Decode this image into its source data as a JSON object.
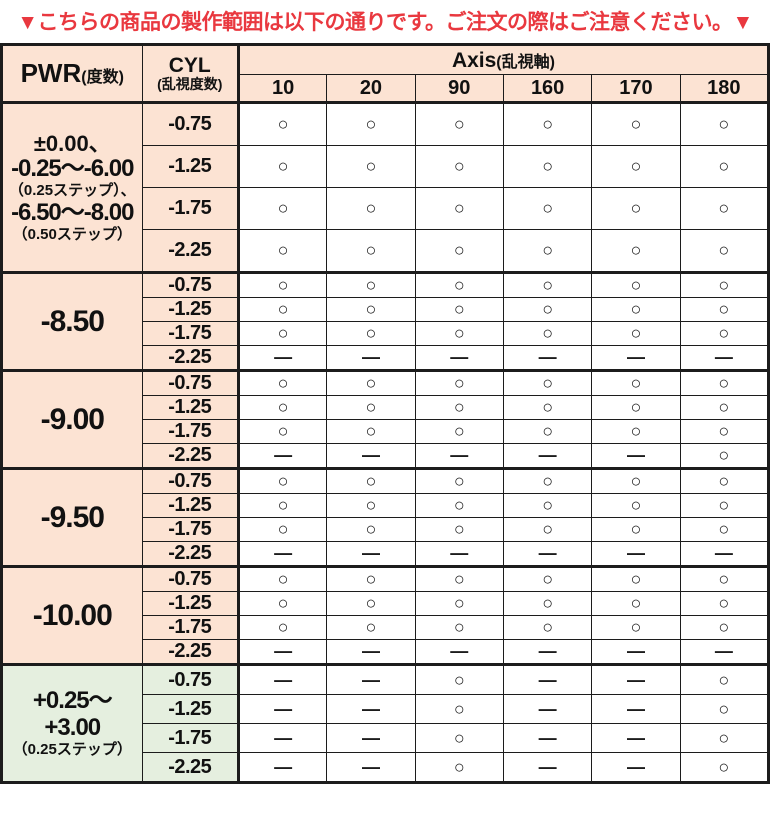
{
  "title": {
    "text": "▼こちらの商品の製作範囲は以下の通りです。ご注文の際はご注意ください。▼",
    "color": "#e9383f"
  },
  "symbols": {
    "available": "○",
    "unavailable": "—"
  },
  "colors": {
    "header_bg": "#fce3d3",
    "minus_group_bg": "#fce3d3",
    "plus_group_bg": "#e5efdf",
    "border": "#1c1c1c",
    "title_red": "#e9383f"
  },
  "table": {
    "headers": {
      "pwr": {
        "main": "PWR",
        "sub": "(度数)"
      },
      "cyl": {
        "main": "CYL",
        "sub": "(乱視度数)"
      },
      "axis": {
        "main": "Axis",
        "sub": "(乱視軸)"
      },
      "axis_values": [
        "10",
        "20",
        "90",
        "160",
        "170",
        "180"
      ]
    },
    "groups": [
      {
        "bg": "peach",
        "row_size": "rh-lg",
        "pwr_lines": [
          {
            "text": "±0.00、",
            "size": "md"
          },
          {
            "text": "-0.25～-6.00",
            "size": "lg"
          },
          {
            "text": "（0.25ステップ）、",
            "size": "sm"
          },
          {
            "text": "-6.50～-8.00",
            "size": "lg"
          },
          {
            "text": "（0.50ステップ）",
            "size": "sm"
          }
        ],
        "rows": [
          {
            "cyl": "-0.75",
            "cells": [
              "○",
              "○",
              "○",
              "○",
              "○",
              "○"
            ]
          },
          {
            "cyl": "-1.25",
            "cells": [
              "○",
              "○",
              "○",
              "○",
              "○",
              "○"
            ]
          },
          {
            "cyl": "-1.75",
            "cells": [
              "○",
              "○",
              "○",
              "○",
              "○",
              "○"
            ]
          },
          {
            "cyl": "-2.25",
            "cells": [
              "○",
              "○",
              "○",
              "○",
              "○",
              "○"
            ]
          }
        ]
      },
      {
        "bg": "peach",
        "row_size": "rh-sm",
        "pwr_lines": [
          {
            "text": "-8.50",
            "size": "xl"
          }
        ],
        "rows": [
          {
            "cyl": "-0.75",
            "cells": [
              "○",
              "○",
              "○",
              "○",
              "○",
              "○"
            ]
          },
          {
            "cyl": "-1.25",
            "cells": [
              "○",
              "○",
              "○",
              "○",
              "○",
              "○"
            ]
          },
          {
            "cyl": "-1.75",
            "cells": [
              "○",
              "○",
              "○",
              "○",
              "○",
              "○"
            ]
          },
          {
            "cyl": "-2.25",
            "cells": [
              "—",
              "—",
              "—",
              "—",
              "—",
              "—"
            ]
          }
        ]
      },
      {
        "bg": "peach",
        "row_size": "rh-sm",
        "pwr_lines": [
          {
            "text": "-9.00",
            "size": "xl"
          }
        ],
        "rows": [
          {
            "cyl": "-0.75",
            "cells": [
              "○",
              "○",
              "○",
              "○",
              "○",
              "○"
            ]
          },
          {
            "cyl": "-1.25",
            "cells": [
              "○",
              "○",
              "○",
              "○",
              "○",
              "○"
            ]
          },
          {
            "cyl": "-1.75",
            "cells": [
              "○",
              "○",
              "○",
              "○",
              "○",
              "○"
            ]
          },
          {
            "cyl": "-2.25",
            "cells": [
              "—",
              "—",
              "—",
              "—",
              "—",
              "○"
            ]
          }
        ]
      },
      {
        "bg": "peach",
        "row_size": "rh-sm",
        "pwr_lines": [
          {
            "text": "-9.50",
            "size": "xl"
          }
        ],
        "rows": [
          {
            "cyl": "-0.75",
            "cells": [
              "○",
              "○",
              "○",
              "○",
              "○",
              "○"
            ]
          },
          {
            "cyl": "-1.25",
            "cells": [
              "○",
              "○",
              "○",
              "○",
              "○",
              "○"
            ]
          },
          {
            "cyl": "-1.75",
            "cells": [
              "○",
              "○",
              "○",
              "○",
              "○",
              "○"
            ]
          },
          {
            "cyl": "-2.25",
            "cells": [
              "—",
              "—",
              "—",
              "—",
              "—",
              "—"
            ]
          }
        ]
      },
      {
        "bg": "peach",
        "row_size": "rh-sm",
        "pwr_lines": [
          {
            "text": "-10.00",
            "size": "xl"
          }
        ],
        "rows": [
          {
            "cyl": "-0.75",
            "cells": [
              "○",
              "○",
              "○",
              "○",
              "○",
              "○"
            ]
          },
          {
            "cyl": "-1.25",
            "cells": [
              "○",
              "○",
              "○",
              "○",
              "○",
              "○"
            ]
          },
          {
            "cyl": "-1.75",
            "cells": [
              "○",
              "○",
              "○",
              "○",
              "○",
              "○"
            ]
          },
          {
            "cyl": "-2.25",
            "cells": [
              "—",
              "—",
              "—",
              "—",
              "—",
              "—"
            ]
          }
        ]
      },
      {
        "bg": "green",
        "row_size": "rh-md",
        "pwr_lines": [
          {
            "text": "+0.25～",
            "size": "lg"
          },
          {
            "text": "+3.00",
            "size": "lg"
          },
          {
            "text": "（0.25ステップ）",
            "size": "sm"
          }
        ],
        "rows": [
          {
            "cyl": "-0.75",
            "cells": [
              "—",
              "—",
              "○",
              "—",
              "—",
              "○"
            ]
          },
          {
            "cyl": "-1.25",
            "cells": [
              "—",
              "—",
              "○",
              "—",
              "—",
              "○"
            ]
          },
          {
            "cyl": "-1.75",
            "cells": [
              "—",
              "—",
              "○",
              "—",
              "—",
              "○"
            ]
          },
          {
            "cyl": "-2.25",
            "cells": [
              "—",
              "—",
              "○",
              "—",
              "—",
              "○"
            ]
          }
        ]
      }
    ]
  }
}
